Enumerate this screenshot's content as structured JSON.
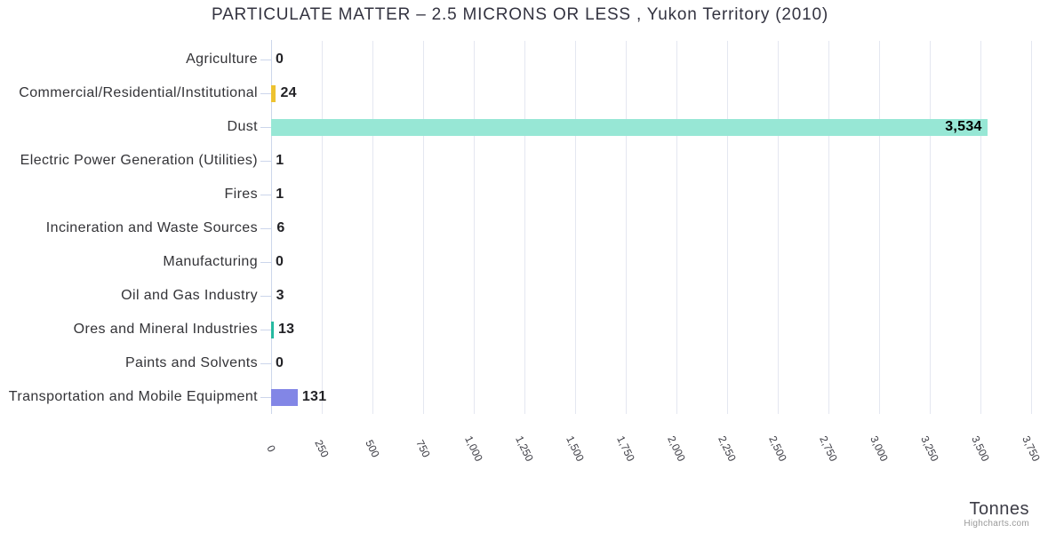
{
  "title": "PARTICULATE MATTER – 2.5 MICRONS OR LESS , Yukon Territory (2010)",
  "credits": "Highcharts.com",
  "chart_data": {
    "type": "bar",
    "orientation": "horizontal",
    "title": "PARTICULATE MATTER – 2.5 MICRONS OR LESS , Yukon Territory (2010)",
    "categories": [
      "Agriculture",
      "Commercial/Residential/Institutional",
      "Dust",
      "Electric Power Generation (Utilities)",
      "Fires",
      "Incineration and Waste Sources",
      "Manufacturing",
      "Oil and Gas Industry",
      "Ores and Mineral Industries",
      "Paints and Solvents",
      "Transportation and Mobile Equipment"
    ],
    "values": [
      0,
      24,
      3534,
      1,
      1,
      6,
      0,
      3,
      13,
      0,
      131
    ],
    "value_labels": [
      "0",
      "24",
      "3,534",
      "1",
      "1",
      "6",
      "0",
      "3",
      "13",
      "0",
      "131"
    ],
    "bar_colors": [
      "#7cb5ec",
      "#edc230",
      "#97e7d5",
      "#7cb5ec",
      "#7cb5ec",
      "#7cb5ec",
      "#7cb5ec",
      "#7cb5ec",
      "#26b9a0",
      "#7cb5ec",
      "#8286e6"
    ],
    "xlabel": "Tonnes",
    "ylabel": "",
    "xlim": [
      0,
      3750
    ],
    "tick_interval": 250,
    "x_tick_labels": [
      "0",
      "250",
      "500",
      "750",
      "1,000",
      "1,250",
      "1,500",
      "1,750",
      "2,000",
      "2,250",
      "2,500",
      "2,750",
      "3,000",
      "3,250",
      "3,500",
      "3,750"
    ],
    "grid": true,
    "legend": false
  },
  "colors": {
    "grid_line": "#e4e7f0",
    "axis_line": "#ccd6eb",
    "label": "#333333"
  }
}
